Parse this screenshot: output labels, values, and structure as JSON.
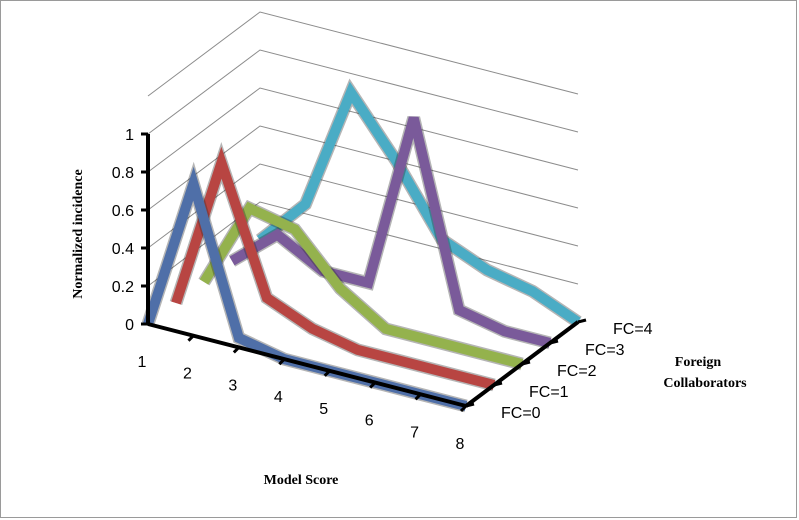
{
  "chart_data": {
    "type": "line",
    "projection": "3d",
    "title": "",
    "xlabel": "Model Score",
    "ylabel": "Normalized incidence",
    "zlabel_lines": [
      "Foreign",
      "Collaborators"
    ],
    "x": [
      1,
      2,
      3,
      4,
      5,
      6,
      7,
      8
    ],
    "ylim": [
      0,
      1
    ],
    "yticks": [
      "0",
      "0.2",
      "0.4",
      "0.6",
      "0.8",
      "1"
    ],
    "grid": true,
    "series": [
      {
        "name": "FC=0",
        "color": "#4f6fa8",
        "values": [
          0,
          0.8,
          0.05,
          0.0,
          0.0,
          0.0,
          0.0,
          0.0
        ]
      },
      {
        "name": "FC=1",
        "color": "#b84542",
        "values": [
          0,
          0.8,
          0.15,
          0.05,
          0.0,
          0.0,
          0.0,
          0.0
        ]
      },
      {
        "name": "FC=2",
        "color": "#94b24d",
        "values": [
          0,
          0.45,
          0.4,
          0.15,
          0.0,
          0.0,
          0.0,
          0.0
        ]
      },
      {
        "name": "FC=3",
        "color": "#7a5a9a",
        "values": [
          0,
          0.2,
          0.07,
          0.07,
          1.0,
          0.05,
          0.0,
          0.0
        ]
      },
      {
        "name": "FC=4",
        "color": "#4aacc5",
        "values": [
          0,
          0.25,
          0.9,
          0.6,
          0.25,
          0.15,
          0.1,
          0.0
        ]
      }
    ]
  }
}
